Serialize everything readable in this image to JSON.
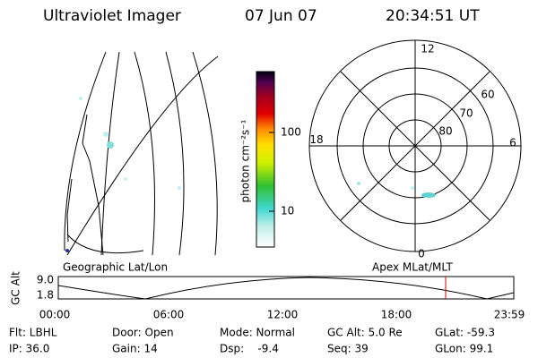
{
  "header": {
    "title": "Ultraviolet Imager",
    "date": "07 Jun 07",
    "time": "20:34:51 UT"
  },
  "map": {
    "label": "Geographic Lat/Lon"
  },
  "colorbar": {
    "label": "photon cm⁻²s⁻¹",
    "ticks": [
      "100",
      "10"
    ]
  },
  "polar": {
    "label": "Apex MLat/MLT",
    "mlt_labels": [
      "12",
      "18",
      "6",
      "0"
    ],
    "lat_labels": [
      "60",
      "70",
      "80"
    ]
  },
  "timeline": {
    "ylabel": "GC Alt",
    "yticks": [
      "9.0",
      "1.8"
    ],
    "xticks": [
      "00:00",
      "06:00",
      "12:00",
      "18:00",
      "23:59"
    ]
  },
  "footer": {
    "rows": [
      [
        "Flt: LBHL",
        "Door: Open",
        "Mode: Normal",
        "GC Alt: 5.0 Re",
        "GLat: -59.3"
      ],
      [
        "IP: 36.0",
        "Gain: 14",
        "Dsp:    -9.4",
        "Seq: 39",
        "GLon: 99.1"
      ]
    ]
  }
}
